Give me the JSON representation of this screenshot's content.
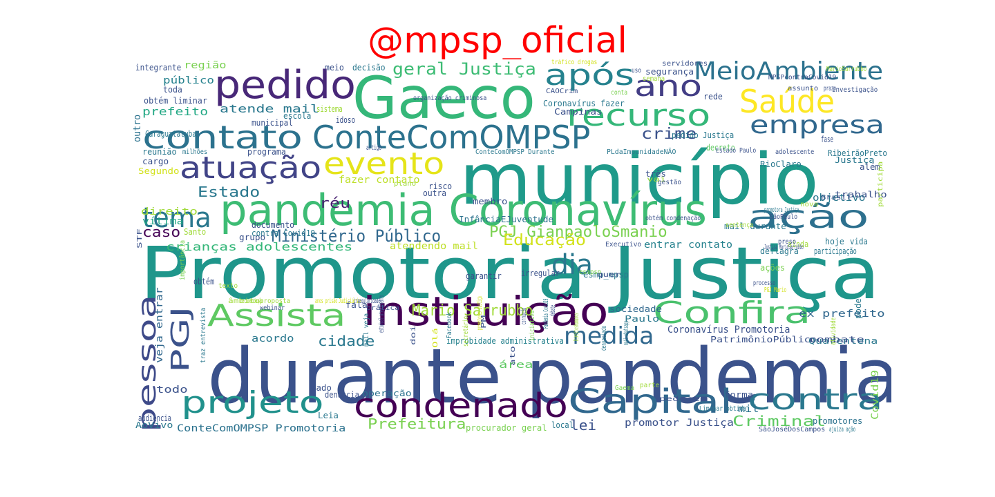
{
  "title": "@mpsp_oficial",
  "words": [
    {
      "text": "Promotoria Justiça",
      "color": "#1f968b",
      "mono": false
    },
    {
      "text": "durante pandemia",
      "color": "#3b528b",
      "mono": false
    },
    {
      "text": "município",
      "color": "#1f9a8a",
      "mono": false
    },
    {
      "text": "Gaeco",
      "color": "#35b779",
      "mono": false
    },
    {
      "text": "pandemia Coronavírus",
      "color": "#3dbc74",
      "mono": false
    },
    {
      "text": "instituição",
      "color": "#440154",
      "mono": false
    },
    {
      "text": "contato",
      "color": "#2c728e",
      "mono": false
    },
    {
      "text": "ConteComOMPSP",
      "color": "#2c728e",
      "mono": false
    },
    {
      "text": "pedido",
      "color": "#482878",
      "mono": false
    },
    {
      "text": "condenado",
      "color": "#440154",
      "mono": false
    },
    {
      "text": "Capital",
      "color": "#31688e",
      "mono": false
    },
    {
      "text": "contra",
      "color": "#2a788e",
      "mono": false
    },
    {
      "text": "projeto",
      "color": "#21918c",
      "mono": false
    },
    {
      "text": "Assista",
      "color": "#5ec962",
      "mono": false
    },
    {
      "text": "Confira",
      "color": "#4ac16d",
      "mono": false
    },
    {
      "text": "atuação",
      "color": "#414487",
      "mono": false
    },
    {
      "text": "evento",
      "color": "#e5e419",
      "mono": false
    },
    {
      "text": "recurso",
      "color": "#35b779",
      "mono": false
    },
    {
      "text": "Saúde",
      "color": "#fde725",
      "mono": false
    },
    {
      "text": "após",
      "color": "#26828e",
      "mono": false
    },
    {
      "text": "ano",
      "color": "#433e85",
      "mono": false
    },
    {
      "text": "MeioAmbiente",
      "color": "#2c728e",
      "mono": false
    },
    {
      "text": "empresa",
      "color": "#31688e",
      "mono": false
    },
    {
      "text": "ação",
      "color": "#2d708e",
      "mono": false
    },
    {
      "text": "tema",
      "color": "#2a788e",
      "mono": false
    },
    {
      "text": "pessoa",
      "color": "#3e4a89",
      "mono": false
    },
    {
      "text": "PGJ",
      "color": "#3b528b",
      "mono": false
    },
    {
      "text": "dia",
      "color": "#2a788e",
      "mono": false
    },
    {
      "text": "medida",
      "color": "#31688e",
      "mono": false
    },
    {
      "text": "geral Justiça",
      "color": "#3dbc74",
      "mono": true
    },
    {
      "text": "Ministério Público",
      "color": "#31688e",
      "mono": true
    },
    {
      "text": "PGJ GianpaoloSmanio",
      "color": "#7ad151",
      "mono": true
    },
    {
      "text": "Mario Sarrubbo",
      "color": "#a0da39",
      "mono": true
    },
    {
      "text": "Educação",
      "color": "#d2e21b",
      "mono": true
    },
    {
      "text": "cidade",
      "color": "#2a788e",
      "mono": true
    },
    {
      "text": "crime",
      "color": "#3b528b",
      "mono": true
    },
    {
      "text": "Estado",
      "color": "#2a788e",
      "mono": true
    },
    {
      "text": "caso",
      "color": "#440154",
      "mono": true
    },
    {
      "text": "réu",
      "color": "#481f70",
      "mono": true
    },
    {
      "text": "Criminal",
      "color": "#5ec962",
      "mono": true
    },
    {
      "text": "Prefeitura",
      "color": "#7ad151",
      "mono": true
    },
    {
      "text": "lei",
      "color": "#3b528b",
      "mono": true
    },
    {
      "text": "atende mail",
      "color": "#2a788e",
      "mono": true
    },
    {
      "text": "prefeito",
      "color": "#22a884",
      "mono": true
    },
    {
      "text": "crianças adolescentes",
      "color": "#35b779",
      "mono": true
    },
    {
      "text": "ConteComOMPSP Promotoria",
      "color": "#2c728e",
      "mono": true
    },
    {
      "text": "promotor Justiça",
      "color": "#3b528b",
      "mono": true
    },
    {
      "text": "Coronavírus Promotoria",
      "color": "#3b528b",
      "mono": true
    },
    {
      "text": "entrar contato",
      "color": "#26828e",
      "mono": true
    },
    {
      "text": "ex prefeito",
      "color": "#31688e",
      "mono": true
    },
    {
      "text": "fazer contato",
      "color": "#bddf26",
      "mono": true
    },
    {
      "text": "direito",
      "color": "#a0da39",
      "mono": true
    },
    {
      "text": "vítima",
      "color": "#22a884",
      "mono": true
    },
    {
      "text": "atendendo mail",
      "color": "#bddf26",
      "mono": true
    },
    {
      "text": "acordo",
      "color": "#2a788e",
      "mono": true
    },
    {
      "text": "área",
      "color": "#5ec962",
      "mono": true
    },
    {
      "text": "todo",
      "color": "#3b528b",
      "mono": true
    },
    {
      "text": "mil",
      "color": "#2c728e",
      "mono": true
    },
    {
      "text": "veja entrar",
      "color": "#31688e",
      "mono": true
    },
    {
      "text": "região",
      "color": "#7ad151",
      "mono": true
    },
    {
      "text": "público",
      "color": "#26828e",
      "mono": true
    },
    {
      "text": "outro",
      "color": "#2c728e",
      "mono": true
    },
    {
      "text": "objetivo",
      "color": "#2a788e",
      "mono": true
    },
    {
      "text": "Covid19",
      "color": "#7ad151",
      "mono": true
    },
    {
      "text": "procurador geral",
      "color": "#7ad151",
      "mono": true
    },
    {
      "text": "promotores",
      "color": "#2c728e",
      "mono": true
    },
    {
      "text": "InfânciaEJuventude",
      "color": "#2c728e",
      "mono": true
    },
    {
      "text": "Lei Improbidade",
      "color": "#2c728e",
      "mono": true
    },
    {
      "text": "PatrimônioPúblico",
      "color": "#3b528b",
      "mono": true
    },
    {
      "text": "improbidade administrativa",
      "color": "#26828e",
      "mono": true
    },
    {
      "text": "sociedade",
      "color": "#31688e",
      "mono": true
    },
    {
      "text": "Paulo",
      "color": "#2a788e",
      "mono": true
    },
    {
      "text": "Quarentena",
      "color": "#2a788e",
      "mono": true
    },
    {
      "text": "operação",
      "color": "#2c728e",
      "mono": true
    },
    {
      "text": "Justiça",
      "color": "#2a788e",
      "mono": true
    },
    {
      "text": "RioClaro",
      "color": "#2a788e",
      "mono": true
    },
    {
      "text": "mail durante",
      "color": "#2a788e",
      "mono": true
    },
    {
      "text": "segurança",
      "color": "#3b528b",
      "mono": true
    },
    {
      "text": "AoVivo",
      "color": "#2a788e",
      "mono": true
    },
    {
      "text": "local",
      "color": "#2a788e",
      "mono": true
    },
    {
      "text": "forma",
      "color": "#3b528b",
      "mono": true
    },
    {
      "text": "três",
      "color": "#3b528b",
      "mono": true
    },
    {
      "text": "obtém liminar",
      "color": "#3b528b",
      "mono": true
    },
    {
      "text": "trabalho",
      "color": "#3b528b",
      "mono": true
    },
    {
      "text": "pode",
      "color": "#2a788e",
      "mono": true
    },
    {
      "text": "escola",
      "color": "#2a788e",
      "mono": true
    },
    {
      "text": "risco",
      "color": "#3b528b",
      "mono": true
    },
    {
      "text": "outra",
      "color": "#3b528b",
      "mono": true
    },
    {
      "text": "membro",
      "color": "#3b528b",
      "mono": true
    },
    {
      "text": "decreto",
      "color": "#5ec962",
      "mono": true
    },
    {
      "text": "hoje",
      "color": "#2a788e",
      "mono": true
    },
    {
      "text": "vida",
      "color": "#2a788e",
      "mono": true
    },
    {
      "text": "participação",
      "color": "#2a788e",
      "mono": true
    },
    {
      "text": "combate",
      "color": "#3b528b",
      "mono": true
    },
    {
      "text": "pedido Justiça",
      "color": "#2a788e",
      "mono": true
    },
    {
      "text": "além",
      "color": "#3b528b",
      "mono": true
    },
    {
      "text": "RibeirãoPreto",
      "color": "#2a788e",
      "mono": true
    },
    {
      "text": "fase",
      "color": "#3b528b",
      "mono": true
    },
    {
      "text": "rede",
      "color": "#3b528b",
      "mono": true
    },
    {
      "text": "Campinas",
      "color": "#3b528b",
      "mono": true
    },
    {
      "text": "Coronavírus fazer",
      "color": "#2a788e",
      "mono": true
    },
    {
      "text": "esmp_mpsp",
      "color": "#2a788e",
      "mono": true
    },
    {
      "text": "irregular",
      "color": "#3b528b",
      "mono": true
    },
    {
      "text": "garantir",
      "color": "#3b528b",
      "mono": true
    },
    {
      "text": "deflagra",
      "color": "#2a788e",
      "mono": true
    },
    {
      "text": "ações",
      "color": "#7ad151",
      "mono": true
    },
    {
      "text": "ainda",
      "color": "#a0da39",
      "mono": true
    },
    {
      "text": "grupo",
      "color": "#3b528b",
      "mono": true
    },
    {
      "text": "programa",
      "color": "#3b528b",
      "mono": true
    },
    {
      "text": "reunião",
      "color": "#2a788e",
      "mono": true
    },
    {
      "text": "cargo",
      "color": "#3b528b",
      "mono": true
    },
    {
      "text": "Segundo",
      "color": "#d2e21b",
      "mono": true
    },
    {
      "text": "documento",
      "color": "#3b528b",
      "mono": true
    },
    {
      "text": "contra Covid19",
      "color": "#2a788e",
      "mono": true
    },
    {
      "text": "dado",
      "color": "#3b528b",
      "mono": true
    },
    {
      "text": "Leia",
      "color": "#2a788e",
      "mono": true
    },
    {
      "text": "denuncia",
      "color": "#3b528b",
      "mono": true
    },
    {
      "text": "audiência",
      "color": "#3b528b",
      "mono": true
    },
    {
      "text": "obtém",
      "color": "#3b528b",
      "mono": true
    },
    {
      "text": "fala",
      "color": "#3b528b",
      "mono": true
    },
    {
      "text": "Santo",
      "color": "#a0da39",
      "mono": true
    },
    {
      "text": "integrante",
      "color": "#3b528b",
      "mono": true
    },
    {
      "text": "toda",
      "color": "#3b528b",
      "mono": true
    },
    {
      "text": "decisão",
      "color": "#2a788e",
      "mono": true
    },
    {
      "text": "meio",
      "color": "#3b528b",
      "mono": true
    },
    {
      "text": "idoso",
      "color": "#3b528b",
      "mono": true
    },
    {
      "text": "municipal",
      "color": "#3b528b",
      "mono": true
    },
    {
      "text": "Caraguatatuba",
      "color": "#2a788e",
      "mono": true
    },
    {
      "text": "sistema",
      "color": "#a0da39",
      "mono": true
    },
    {
      "text": "organização criminosa",
      "color": "#3b528b",
      "mono": true
    },
    {
      "text": "tráfico drogas",
      "color": "#d2e21b",
      "mono": true
    },
    {
      "text": "uso",
      "color": "#3b528b",
      "mono": true
    },
    {
      "text": "servidores",
      "color": "#3b528b",
      "mono": true
    },
    {
      "text": "MarioSarrubbo",
      "color": "#a0da39",
      "mono": true
    },
    {
      "text": "semana",
      "color": "#a0da39",
      "mono": true
    },
    {
      "text": "MPSPcontraCovid19",
      "color": "#3b528b",
      "mono": true
    },
    {
      "text": "CAOCrim",
      "color": "#3b528b",
      "mono": true
    },
    {
      "text": "conta",
      "color": "#7ad151",
      "mono": true
    },
    {
      "text": "assunto",
      "color": "#3b528b",
      "mono": true
    },
    {
      "text": "prazo",
      "color": "#3b528b",
      "mono": true
    },
    {
      "text": "investigação",
      "color": "#3b528b",
      "mono": true
    },
    {
      "text": "ConteComOMPSP Durante",
      "color": "#2a788e",
      "mono": true
    },
    {
      "text": "PLdaImpunidadeNÃO",
      "color": "#2a788e",
      "mono": true
    },
    {
      "text": "Estado Paulo",
      "color": "#3b528b",
      "mono": true
    },
    {
      "text": "adolescente",
      "color": "#3b528b",
      "mono": true
    },
    {
      "text": "milhões",
      "color": "#2a788e",
      "mono": true
    },
    {
      "text": "artigo",
      "color": "#3b528b",
      "mono": true
    },
    {
      "text": "plano",
      "color": "#a0da39",
      "mono": true
    },
    {
      "text": "vai",
      "color": "#a0da39",
      "mono": true
    },
    {
      "text": "gestão",
      "color": "#3b528b",
      "mono": true
    },
    {
      "text": "nova",
      "color": "#a0da39",
      "mono": true
    },
    {
      "text": "Brasil",
      "color": "#3b528b",
      "mono": true
    },
    {
      "text": "atividade",
      "color": "#a0da39",
      "mono": true
    },
    {
      "text": "participa",
      "color": "#a0da39",
      "mono": true
    },
    {
      "text": "obtém condenação",
      "color": "#3b528b",
      "mono": true
    },
    {
      "text": "promotora Justiça",
      "color": "#2a788e",
      "mono": true
    },
    {
      "text": "SãoPaulo",
      "color": "#3b528b",
      "mono": true
    },
    {
      "text": "sentença",
      "color": "#a0da39",
      "mono": true
    },
    {
      "text": "preso",
      "color": "#3b528b",
      "mono": true
    },
    {
      "text": "Executivo",
      "color": "#3b528b",
      "mono": true
    },
    {
      "text": "Justiça MarioSarrubbo",
      "color": "#3b528b",
      "mono": true
    },
    {
      "text": "esmpsp",
      "color": "#7ad151",
      "mono": true
    },
    {
      "text": "quer",
      "color": "#3b528b",
      "mono": true
    },
    {
      "text": "processo",
      "color": "#3b528b",
      "mono": true
    },
    {
      "text": "PGJ Mario",
      "color": "#d2e21b",
      "mono": true
    },
    {
      "text": "texto",
      "color": "#a0da39",
      "mono": true
    },
    {
      "text": "âmbito",
      "color": "#a0da39",
      "mono": true
    },
    {
      "text": "recomendação",
      "color": "#a0da39",
      "mono": true
    },
    {
      "text": "proposta",
      "color": "#a0da39",
      "mono": true
    },
    {
      "text": "webinar",
      "color": "#3b528b",
      "mono": true
    },
    {
      "text": "anos prisão",
      "color": "#d2e21b",
      "mono": true
    },
    {
      "text": "Judiciário",
      "color": "#d2e21b",
      "mono": true
    },
    {
      "text": "irregularidade",
      "color": "#3b528b",
      "mono": true
    },
    {
      "text": "prática",
      "color": "#3b528b",
      "mono": true
    },
    {
      "text": "mail veja",
      "color": "#2a788e",
      "mono": true
    },
    {
      "text": "estadual atendimento",
      "color": "#3b528b",
      "mono": true
    },
    {
      "text": "doi",
      "color": "#3b528b",
      "mono": true
    },
    {
      "text": "Olá",
      "color": "#d2e21b",
      "mono": true
    },
    {
      "text": "Facebook",
      "color": "#2a788e",
      "mono": true
    },
    {
      "text": "secretário",
      "color": "#a0da39",
      "mono": true
    },
    {
      "text": "promotores Justiça",
      "color": "#d2e21b",
      "mono": true
    },
    {
      "text": "PM",
      "color": "#3b528b",
      "mono": true
    },
    {
      "text": "ato",
      "color": "#3b528b",
      "mono": true
    },
    {
      "text": "corrupção",
      "color": "#3b528b",
      "mono": true
    },
    {
      "text": "iniciativa",
      "color": "#7ad151",
      "mono": true
    },
    {
      "text": "Pandemia Covid19",
      "color": "#2a788e",
      "mono": true
    },
    {
      "text": "debate",
      "color": "#3b528b",
      "mono": true
    },
    {
      "text": "DireitosHumanos",
      "color": "#a0da39",
      "mono": true
    },
    {
      "text": "denunciado",
      "color": "#2a788e",
      "mono": true
    },
    {
      "text": "mail whatsapp",
      "color": "#2a788e",
      "mono": true
    },
    {
      "text": "Gaema",
      "color": "#7ad151",
      "mono": true
    },
    {
      "text": "parte",
      "color": "#a0da39",
      "mono": true
    },
    {
      "text": "pede",
      "color": "#3b528b",
      "mono": true
    },
    {
      "text": "ser",
      "color": "#3b528b",
      "mono": true
    },
    {
      "text": "Liminar obtida",
      "color": "#2a788e",
      "mono": true
    },
    {
      "text": "SãoJoséDosCampos",
      "color": "#3b528b",
      "mono": true
    },
    {
      "text": "ajuíza ação",
      "color": "#2a788e",
      "mono": true
    },
    {
      "text": "STF",
      "color": "#3b528b",
      "mono": true
    },
    {
      "text": "importância",
      "color": "#7ad151",
      "mono": true
    },
    {
      "text": "traz entrevista",
      "color": "#2a788e",
      "mono": true
    }
  ]
}
